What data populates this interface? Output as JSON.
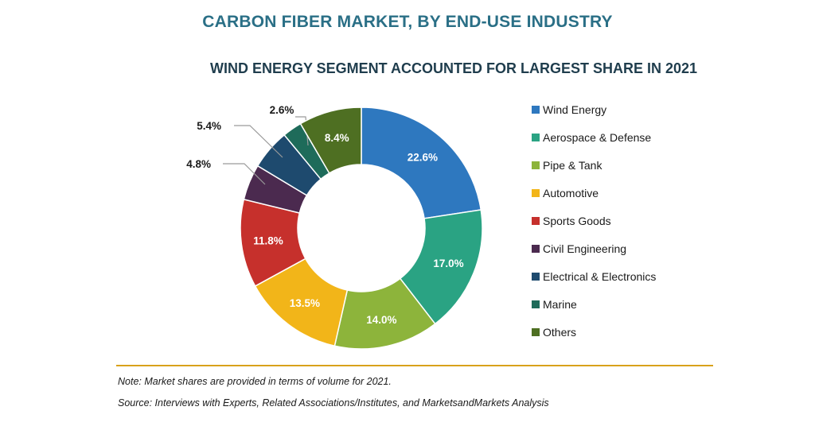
{
  "title": "CARBON FIBER MARKET, BY END-USE INDUSTRY",
  "subtitle": "WIND ENERGY SEGMENT ACCOUNTED FOR LARGEST SHARE IN 2021",
  "note": "Note: Market shares are provided in terms of volume for 2021.",
  "source": "Source: Interviews with Experts, Related Associations/Institutes, and MarketsandMarkets Analysis",
  "colors": {
    "title": "#2a6f86",
    "rule": "#d9a21b"
  },
  "chart_data": {
    "type": "pie",
    "donut": true,
    "categories": [
      "Wind Energy",
      "Aerospace & Defense",
      "Pipe & Tank",
      "Automotive",
      "Sports Goods",
      "Civil Engineering",
      "Electrical & Electronics",
      "Marine",
      "Others"
    ],
    "values": [
      22.6,
      17.0,
      14.0,
      13.5,
      11.8,
      4.8,
      5.4,
      2.6,
      8.4
    ],
    "labels": [
      "22.6%",
      "17.0%",
      "14.0%",
      "13.5%",
      "11.8%",
      "4.8%",
      "5.4%",
      "2.6%",
      "8.4%"
    ],
    "colors": [
      "#2e78bf",
      "#2aa383",
      "#8db43b",
      "#f2b519",
      "#c6302c",
      "#4b2a4f",
      "#1e4a6e",
      "#1e6b5a",
      "#4e6f22"
    ],
    "legend_position": "right"
  }
}
